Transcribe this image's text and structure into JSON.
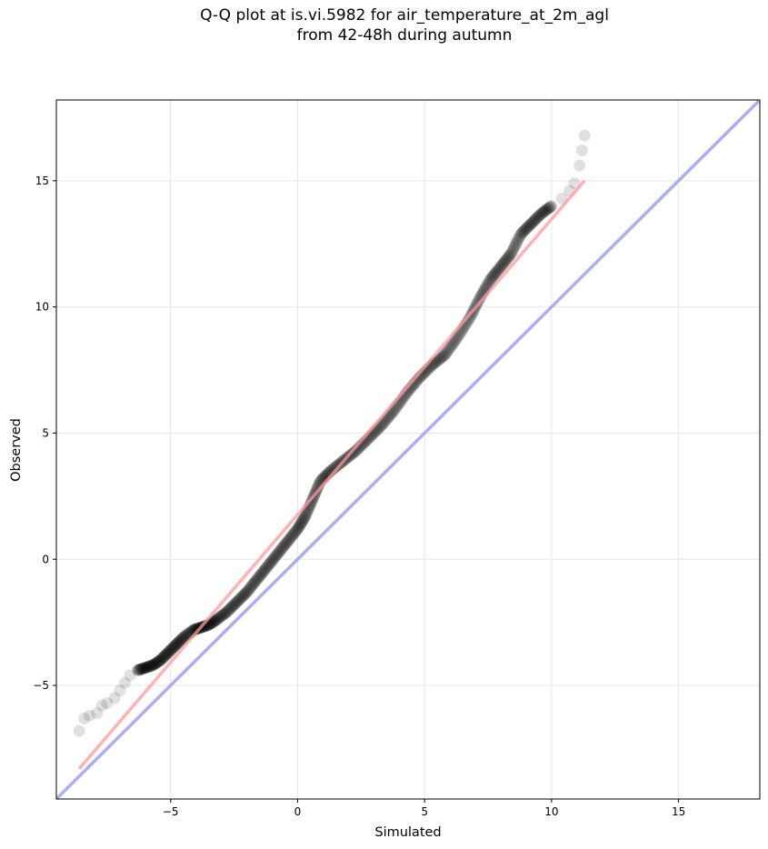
{
  "chart_data": {
    "type": "scatter",
    "title_line1": "Q-Q plot at is.vi.5982 for air_temperature_at_2m_agl",
    "title_line2": "from 42-48h during autumn",
    "xlabel": "Simulated",
    "ylabel": "Observed",
    "xlim": [
      -9.5,
      18.2
    ],
    "ylim": [
      -9.5,
      18.2
    ],
    "xticks": [
      -5,
      0,
      5,
      10,
      15
    ],
    "yticks": [
      -5,
      0,
      5,
      10,
      15
    ],
    "xtick_labels": [
      "−5",
      "0",
      "5",
      "10",
      "15"
    ],
    "ytick_labels": [
      "−5",
      "0",
      "5",
      "10",
      "15"
    ],
    "grid": true,
    "point_color": "#000000",
    "fit_line_color": "#ff9999",
    "identity_line_color": "#9999ee",
    "quantile_curve": [
      [
        -8.6,
        -6.8
      ],
      [
        -8.4,
        -6.3
      ],
      [
        -8.2,
        -6.2
      ],
      [
        -7.9,
        -6.1
      ],
      [
        -7.7,
        -5.8
      ],
      [
        -7.5,
        -5.7
      ],
      [
        -7.2,
        -5.5
      ],
      [
        -7.0,
        -5.2
      ],
      [
        -6.8,
        -4.9
      ],
      [
        -6.6,
        -4.6
      ],
      [
        -6.3,
        -4.4
      ],
      [
        -6.0,
        -4.3
      ],
      [
        -5.7,
        -4.2
      ],
      [
        -5.4,
        -4.0
      ],
      [
        -5.1,
        -3.7
      ],
      [
        -4.8,
        -3.4
      ],
      [
        -4.5,
        -3.1
      ],
      [
        -4.1,
        -2.8
      ],
      [
        -3.8,
        -2.7
      ],
      [
        -3.5,
        -2.6
      ],
      [
        -3.2,
        -2.4
      ],
      [
        -2.8,
        -2.1
      ],
      [
        -2.4,
        -1.7
      ],
      [
        -2.0,
        -1.3
      ],
      [
        -1.6,
        -0.8
      ],
      [
        -1.2,
        -0.3
      ],
      [
        -0.8,
        0.2
      ],
      [
        -0.4,
        0.7
      ],
      [
        0.0,
        1.2
      ],
      [
        0.3,
        1.7
      ],
      [
        0.6,
        2.4
      ],
      [
        0.9,
        3.1
      ],
      [
        1.3,
        3.5
      ],
      [
        1.8,
        3.9
      ],
      [
        2.3,
        4.3
      ],
      [
        2.8,
        4.8
      ],
      [
        3.3,
        5.3
      ],
      [
        3.8,
        5.9
      ],
      [
        4.3,
        6.6
      ],
      [
        4.8,
        7.2
      ],
      [
        5.3,
        7.7
      ],
      [
        5.8,
        8.1
      ],
      [
        6.3,
        8.8
      ],
      [
        6.8,
        9.6
      ],
      [
        7.2,
        10.4
      ],
      [
        7.6,
        11.1
      ],
      [
        8.0,
        11.6
      ],
      [
        8.4,
        12.1
      ],
      [
        8.8,
        12.9
      ],
      [
        9.2,
        13.3
      ],
      [
        9.6,
        13.7
      ],
      [
        10.0,
        14.0
      ],
      [
        10.4,
        14.3
      ],
      [
        10.7,
        14.6
      ],
      [
        10.9,
        14.9
      ],
      [
        11.1,
        15.6
      ],
      [
        11.2,
        16.2
      ],
      [
        11.3,
        16.8
      ]
    ],
    "fit_line": [
      [
        -8.6,
        -8.3
      ],
      [
        11.3,
        15.0
      ]
    ],
    "identity_line": [
      [
        -9.5,
        -9.5
      ],
      [
        18.2,
        18.2
      ]
    ]
  }
}
